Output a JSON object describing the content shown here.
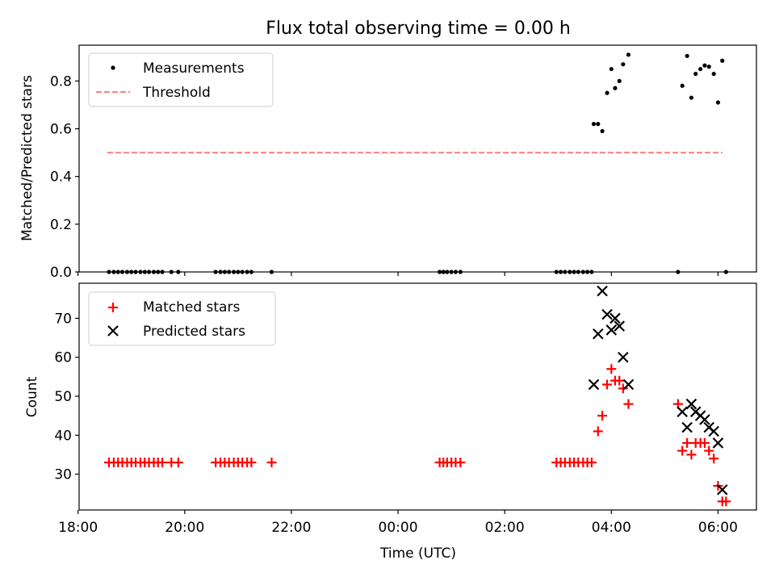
{
  "chart_data": [
    {
      "type": "scatter",
      "title": "Flux total observing time = 0.00 h",
      "xlabel": "",
      "ylabel": "Matched/Predicted stars",
      "ylim": [
        0,
        0.95
      ],
      "xlim_hours_utc": [
        -5.98,
        6.72
      ],
      "yticks": [
        0.0,
        0.2,
        0.4,
        0.6,
        0.8
      ],
      "ytick_labels": [
        "0.0",
        "0.2",
        "0.4",
        "0.6",
        "0.8"
      ],
      "legend": {
        "position": "upper-left",
        "entries": [
          "Measurements",
          "Threshold"
        ]
      },
      "colors": {
        "measurements": "#000000",
        "threshold": "#ff7f7f"
      },
      "threshold": {
        "name": "Threshold",
        "y": 0.5,
        "x_range_hours_utc": [
          -5.45,
          6.08
        ]
      },
      "series": [
        {
          "name": "Measurements",
          "points": [
            [
              -5.42,
              0
            ],
            [
              -5.33,
              0
            ],
            [
              -5.25,
              0
            ],
            [
              -5.17,
              0
            ],
            [
              -5.08,
              0
            ],
            [
              -5.0,
              0
            ],
            [
              -4.92,
              0
            ],
            [
              -4.83,
              0
            ],
            [
              -4.75,
              0
            ],
            [
              -4.67,
              0
            ],
            [
              -4.58,
              0
            ],
            [
              -4.5,
              0
            ],
            [
              -4.42,
              0
            ],
            [
              -4.25,
              0
            ],
            [
              -4.12,
              0
            ],
            [
              -3.42,
              0
            ],
            [
              -3.33,
              0
            ],
            [
              -3.25,
              0
            ],
            [
              -3.17,
              0
            ],
            [
              -3.08,
              0
            ],
            [
              -3.0,
              0
            ],
            [
              -2.92,
              0
            ],
            [
              -2.83,
              0
            ],
            [
              -2.75,
              0
            ],
            [
              -2.37,
              0
            ],
            [
              0.78,
              0
            ],
            [
              0.85,
              0
            ],
            [
              0.92,
              0
            ],
            [
              1.0,
              0
            ],
            [
              1.08,
              0
            ],
            [
              1.17,
              0
            ],
            [
              2.97,
              0
            ],
            [
              3.05,
              0
            ],
            [
              3.13,
              0
            ],
            [
              3.22,
              0
            ],
            [
              3.3,
              0
            ],
            [
              3.38,
              0
            ],
            [
              3.47,
              0
            ],
            [
              3.55,
              0
            ],
            [
              3.63,
              0
            ],
            [
              3.67,
              0.62
            ],
            [
              3.75,
              0.62
            ],
            [
              3.83,
              0.59
            ],
            [
              3.92,
              0.75
            ],
            [
              4.0,
              0.85
            ],
            [
              4.07,
              0.77
            ],
            [
              4.15,
              0.8
            ],
            [
              4.22,
              0.87
            ],
            [
              4.32,
              0.91
            ],
            [
              5.25,
              0
            ],
            [
              5.33,
              0.78
            ],
            [
              5.42,
              0.905
            ],
            [
              5.5,
              0.73
            ],
            [
              5.58,
              0.83
            ],
            [
              5.67,
              0.85
            ],
            [
              5.75,
              0.865
            ],
            [
              5.83,
              0.86
            ],
            [
              5.92,
              0.83
            ],
            [
              6.0,
              0.71
            ],
            [
              6.08,
              0.885
            ],
            [
              6.15,
              0
            ]
          ]
        }
      ]
    },
    {
      "type": "scatter",
      "title": "",
      "xlabel": "Time (UTC)",
      "ylabel": "Count",
      "ylim": [
        20.8,
        79
      ],
      "xlim_hours_utc": [
        -5.98,
        6.72
      ],
      "yticks": [
        30,
        40,
        50,
        60,
        70
      ],
      "ytick_labels": [
        "30",
        "40",
        "50",
        "60",
        "70"
      ],
      "xticks_hours_utc": [
        -6,
        -4,
        -2,
        0,
        2,
        4,
        6
      ],
      "xtick_labels": [
        "18:00",
        "20:00",
        "22:00",
        "00:00",
        "02:00",
        "04:00",
        "06:00"
      ],
      "legend": {
        "position": "upper-left",
        "entries": [
          "Matched stars",
          "Predicted stars"
        ]
      },
      "colors": {
        "matched": "#ff0000",
        "predicted": "#000000"
      },
      "series": [
        {
          "name": "Matched stars",
          "marker": "plus",
          "points": [
            [
              -5.42,
              33
            ],
            [
              -5.33,
              33
            ],
            [
              -5.25,
              33
            ],
            [
              -5.17,
              33
            ],
            [
              -5.08,
              33
            ],
            [
              -5.0,
              33
            ],
            [
              -4.92,
              33
            ],
            [
              -4.83,
              33
            ],
            [
              -4.75,
              33
            ],
            [
              -4.67,
              33
            ],
            [
              -4.58,
              33
            ],
            [
              -4.5,
              33
            ],
            [
              -4.42,
              33
            ],
            [
              -4.25,
              33
            ],
            [
              -4.12,
              33
            ],
            [
              -3.42,
              33
            ],
            [
              -3.33,
              33
            ],
            [
              -3.25,
              33
            ],
            [
              -3.17,
              33
            ],
            [
              -3.08,
              33
            ],
            [
              -3.0,
              33
            ],
            [
              -2.92,
              33
            ],
            [
              -2.83,
              33
            ],
            [
              -2.75,
              33
            ],
            [
              -2.37,
              33
            ],
            [
              0.78,
              33
            ],
            [
              0.85,
              33
            ],
            [
              0.92,
              33
            ],
            [
              1.0,
              33
            ],
            [
              1.08,
              33
            ],
            [
              1.17,
              33
            ],
            [
              2.97,
              33
            ],
            [
              3.05,
              33
            ],
            [
              3.13,
              33
            ],
            [
              3.22,
              33
            ],
            [
              3.3,
              33
            ],
            [
              3.38,
              33
            ],
            [
              3.47,
              33
            ],
            [
              3.55,
              33
            ],
            [
              3.63,
              33
            ],
            [
              3.75,
              41
            ],
            [
              3.83,
              45
            ],
            [
              3.92,
              53
            ],
            [
              4.0,
              57
            ],
            [
              4.07,
              54
            ],
            [
              4.15,
              54
            ],
            [
              4.22,
              52
            ],
            [
              4.32,
              48
            ],
            [
              5.25,
              48
            ],
            [
              5.33,
              36
            ],
            [
              5.42,
              38
            ],
            [
              5.5,
              35
            ],
            [
              5.58,
              38
            ],
            [
              5.67,
              38
            ],
            [
              5.75,
              38
            ],
            [
              5.83,
              36
            ],
            [
              5.92,
              34
            ],
            [
              6.0,
              27
            ],
            [
              6.08,
              23
            ],
            [
              6.15,
              23
            ]
          ]
        },
        {
          "name": "Predicted stars",
          "marker": "x",
          "points": [
            [
              3.67,
              53
            ],
            [
              3.75,
              66
            ],
            [
              3.83,
              77
            ],
            [
              3.92,
              71
            ],
            [
              4.0,
              67
            ],
            [
              4.07,
              70
            ],
            [
              4.15,
              68
            ],
            [
              4.22,
              60
            ],
            [
              4.32,
              53
            ],
            [
              5.33,
              46
            ],
            [
              5.42,
              42
            ],
            [
              5.5,
              48
            ],
            [
              5.58,
              46
            ],
            [
              5.67,
              45
            ],
            [
              5.75,
              44
            ],
            [
              5.83,
              42
            ],
            [
              5.92,
              41
            ],
            [
              6.0,
              38
            ],
            [
              6.08,
              26
            ]
          ]
        }
      ]
    }
  ]
}
